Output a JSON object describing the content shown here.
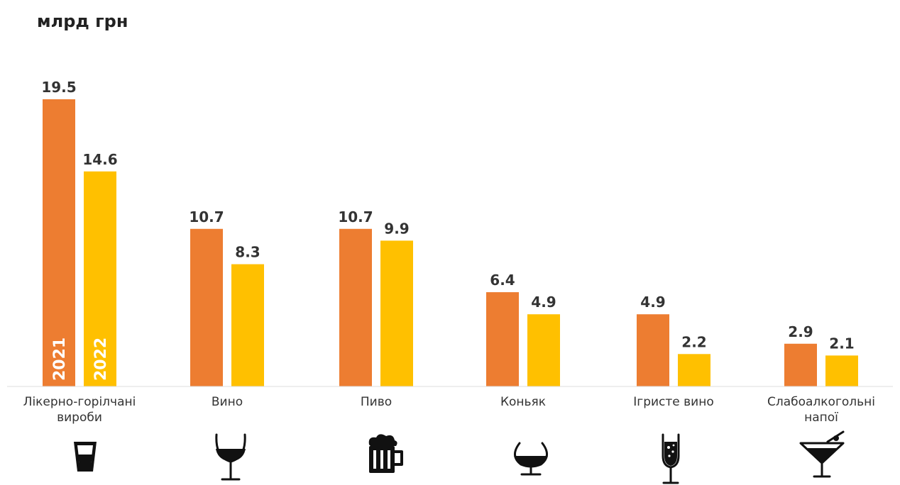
{
  "chart_data": {
    "type": "bar",
    "unit_label": "млрд грн",
    "categories": [
      "Лікерно-горілчані вироби",
      "Вино",
      "Пиво",
      "Коньяк",
      "Ігристе вино",
      "Слабоалкогольні напої"
    ],
    "category_lines": [
      [
        "Лікерно-горілчані",
        "вироби"
      ],
      [
        "Вино"
      ],
      [
        "Пиво"
      ],
      [
        "Коньяк"
      ],
      [
        "Ігристе вино"
      ],
      [
        "Слабоалкогольні",
        "напої"
      ]
    ],
    "series": [
      {
        "name": "2021",
        "color": "#ED7D31",
        "values": [
          19.5,
          10.7,
          10.7,
          6.4,
          4.9,
          2.9
        ],
        "value_labels": [
          "19.5",
          "10.7",
          "10.7",
          "6.4",
          "4.9",
          "2.9"
        ]
      },
      {
        "name": "2022",
        "color": "#FFC000",
        "values": [
          14.6,
          8.3,
          9.9,
          4.9,
          2.2,
          2.1
        ],
        "value_labels": [
          "14.6",
          "8.3",
          "9.9",
          "4.9",
          "2.2",
          "2.1"
        ]
      }
    ],
    "ylim": [
      0,
      20
    ],
    "grid": false,
    "legend": "inside first category bars (vertical year labels)",
    "icons": [
      "shot-glass-icon",
      "wine-glass-icon",
      "beer-mug-icon",
      "cognac-glass-icon",
      "champagne-flute-icon",
      "cocktail-glass-icon"
    ]
  }
}
